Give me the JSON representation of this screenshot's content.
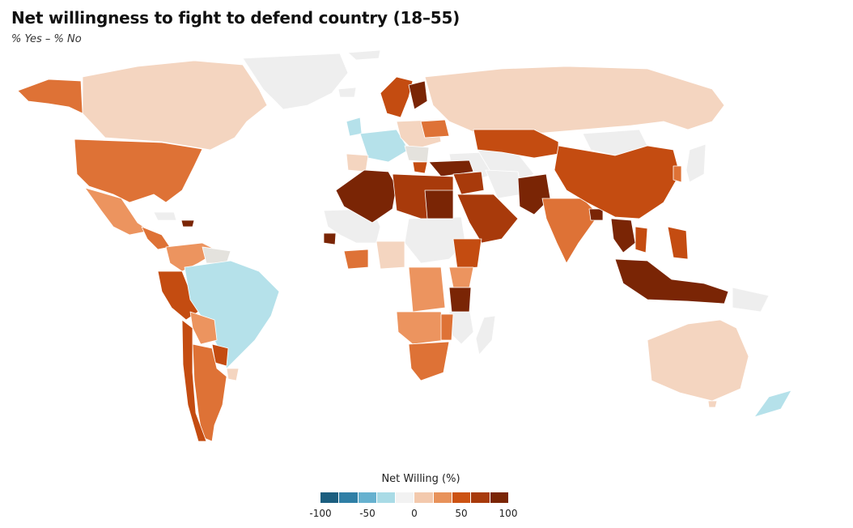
{
  "title": "Net willingness to fight to defend country (18–55)",
  "subtitle": "% Yes – % No",
  "legend": {
    "title": "Net Willing (%)",
    "ticks": [
      "-100",
      "-50",
      "0",
      "50",
      "100"
    ],
    "colors": [
      "#1b5e7f",
      "#2f7fa6",
      "#66b1cf",
      "#a9dbe6",
      "#f2f2f2",
      "#f3c9ad",
      "#e8925a",
      "#cc5212",
      "#a83a0b",
      "#7a2505"
    ]
  },
  "colors": {
    "no_data": "#eeeeee",
    "very_high": "#7a2505",
    "high": "#c44c11",
    "mid_high": "#de7236",
    "mid": "#ec945f",
    "low": "#f4d5c0",
    "neutral": "#e4e2dd",
    "negative": "#b5e1ea"
  }
}
